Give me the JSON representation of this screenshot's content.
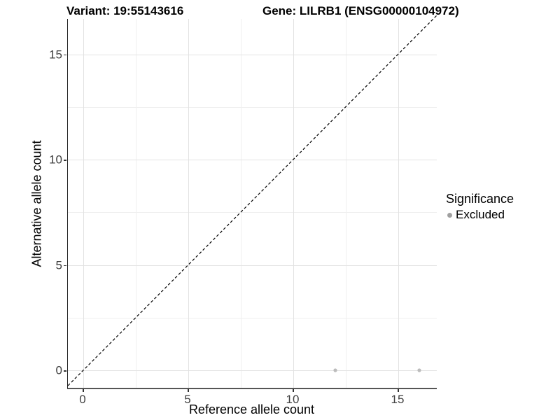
{
  "titles": {
    "variant": "Variant: 19:55143616",
    "gene": "Gene: LILRB1 (ENSG00000104972)"
  },
  "axes": {
    "x": {
      "label": "Reference allele count",
      "tick_labels": [
        "0",
        "5",
        "10",
        "15"
      ]
    },
    "y": {
      "label": "Alternative allele count",
      "tick_labels": [
        "0",
        "5",
        "10",
        "15"
      ]
    }
  },
  "legend": {
    "title": "Significance",
    "items": [
      {
        "label": "Excluded",
        "marker": "dot",
        "color": "#a0a0a0"
      }
    ]
  },
  "chart_data": {
    "type": "scatter",
    "title": "Variant: 19:55143616 | Gene: LILRB1 (ENSG00000104972)",
    "xlabel": "Reference allele count",
    "ylabel": "Alternative allele count",
    "x_ticks": [
      0,
      5,
      10,
      15
    ],
    "y_ticks": [
      0,
      5,
      10,
      15
    ],
    "x_minor": [
      2.5,
      7.5,
      12.5
    ],
    "y_minor": [
      2.5,
      7.5,
      12.5
    ],
    "xlim": [
      -0.8,
      16.8
    ],
    "ylim": [
      -0.8,
      16.8
    ],
    "grid": true,
    "legend_position": "right",
    "reference_line": {
      "type": "identity y=x",
      "style": "dashed",
      "color": "#000000"
    },
    "series": [
      {
        "name": "Excluded",
        "color": "#bcbcbc",
        "points": [
          {
            "x": 12,
            "y": 0
          },
          {
            "x": 16,
            "y": 0
          }
        ]
      }
    ]
  },
  "colors": {
    "background": "#ffffff",
    "grid_major": "#e2e2e2",
    "grid_minor": "#efefef",
    "axis_line": "#444444",
    "tick_text": "#404040",
    "point": "#bcbcbc",
    "legend_key": "#a0a0a0"
  }
}
